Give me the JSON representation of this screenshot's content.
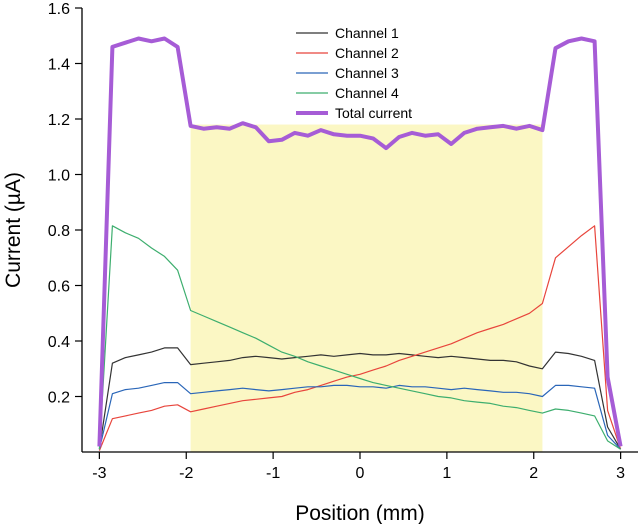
{
  "chart_data": {
    "type": "line",
    "title": "",
    "xlabel": "Position (mm)",
    "ylabel": "Current (µA)",
    "xlim": [
      -3.2,
      3.2
    ],
    "ylim": [
      0,
      1.6
    ],
    "xticks": [
      -3,
      -2,
      -1,
      0,
      1,
      2,
      3
    ],
    "xtick_labels": [
      "-3",
      "-2",
      "-1",
      "0",
      "1",
      "2",
      "3"
    ],
    "yticks": [
      0.2,
      0.4,
      0.6,
      0.8,
      1.0,
      1.2,
      1.4,
      1.6
    ],
    "ytick_labels": [
      "0.2",
      "0.4",
      "0.6",
      "0.8",
      "1.0",
      "1.2",
      "1.4",
      "1.6"
    ],
    "grid": false,
    "legend_position": "top-center",
    "highlight_region": {
      "x": [
        -1.95,
        2.1
      ],
      "y": [
        0,
        1.18
      ],
      "color": "#fbf7c4"
    },
    "series": [
      {
        "name": "Channel 1",
        "color": "#333333",
        "x": [
          -3.0,
          -2.85,
          -2.7,
          -2.55,
          -2.4,
          -2.25,
          -2.1,
          -1.95,
          -1.8,
          -1.65,
          -1.5,
          -1.35,
          -1.2,
          -1.05,
          -0.9,
          -0.75,
          -0.6,
          -0.45,
          -0.3,
          -0.15,
          0.0,
          0.15,
          0.3,
          0.45,
          0.6,
          0.75,
          0.9,
          1.05,
          1.2,
          1.35,
          1.5,
          1.65,
          1.8,
          1.95,
          2.1,
          2.25,
          2.4,
          2.55,
          2.7,
          2.85,
          3.0
        ],
        "y": [
          0.01,
          0.32,
          0.34,
          0.35,
          0.36,
          0.375,
          0.375,
          0.315,
          0.32,
          0.325,
          0.33,
          0.34,
          0.345,
          0.34,
          0.335,
          0.34,
          0.345,
          0.35,
          0.345,
          0.35,
          0.355,
          0.35,
          0.35,
          0.355,
          0.35,
          0.345,
          0.34,
          0.345,
          0.34,
          0.335,
          0.33,
          0.33,
          0.325,
          0.31,
          0.3,
          0.36,
          0.355,
          0.345,
          0.33,
          0.09,
          0.01
        ]
      },
      {
        "name": "Channel 2",
        "color": "#e8453c",
        "x": [
          -3.0,
          -2.85,
          -2.7,
          -2.55,
          -2.4,
          -2.25,
          -2.1,
          -1.95,
          -1.8,
          -1.65,
          -1.5,
          -1.35,
          -1.2,
          -1.05,
          -0.9,
          -0.75,
          -0.6,
          -0.45,
          -0.3,
          -0.15,
          0.0,
          0.15,
          0.3,
          0.45,
          0.6,
          0.75,
          0.9,
          1.05,
          1.2,
          1.35,
          1.5,
          1.65,
          1.8,
          1.95,
          2.1,
          2.25,
          2.4,
          2.55,
          2.7,
          2.85,
          3.0
        ],
        "y": [
          0.005,
          0.12,
          0.13,
          0.14,
          0.15,
          0.165,
          0.17,
          0.145,
          0.155,
          0.165,
          0.175,
          0.185,
          0.19,
          0.195,
          0.2,
          0.215,
          0.225,
          0.24,
          0.255,
          0.27,
          0.28,
          0.295,
          0.31,
          0.33,
          0.345,
          0.36,
          0.375,
          0.39,
          0.41,
          0.43,
          0.445,
          0.46,
          0.48,
          0.5,
          0.535,
          0.7,
          0.74,
          0.78,
          0.815,
          0.15,
          0.01
        ]
      },
      {
        "name": "Channel 3",
        "color": "#2a66b8",
        "x": [
          -3.0,
          -2.85,
          -2.7,
          -2.55,
          -2.4,
          -2.25,
          -2.1,
          -1.95,
          -1.8,
          -1.65,
          -1.5,
          -1.35,
          -1.2,
          -1.05,
          -0.9,
          -0.75,
          -0.6,
          -0.45,
          -0.3,
          -0.15,
          0.0,
          0.15,
          0.3,
          0.45,
          0.6,
          0.75,
          0.9,
          1.05,
          1.2,
          1.35,
          1.5,
          1.65,
          1.8,
          1.95,
          2.1,
          2.25,
          2.4,
          2.55,
          2.7,
          2.85,
          3.0
        ],
        "y": [
          0.01,
          0.21,
          0.225,
          0.23,
          0.24,
          0.25,
          0.25,
          0.21,
          0.215,
          0.22,
          0.225,
          0.23,
          0.225,
          0.22,
          0.225,
          0.23,
          0.235,
          0.235,
          0.24,
          0.24,
          0.235,
          0.235,
          0.23,
          0.24,
          0.235,
          0.235,
          0.23,
          0.225,
          0.23,
          0.225,
          0.22,
          0.215,
          0.215,
          0.21,
          0.2,
          0.24,
          0.24,
          0.235,
          0.23,
          0.06,
          0.01
        ]
      },
      {
        "name": "Channel 4",
        "color": "#3dae6e",
        "x": [
          -3.0,
          -2.85,
          -2.7,
          -2.55,
          -2.4,
          -2.25,
          -2.1,
          -1.95,
          -1.8,
          -1.65,
          -1.5,
          -1.35,
          -1.2,
          -1.05,
          -0.9,
          -0.75,
          -0.6,
          -0.45,
          -0.3,
          -0.15,
          0.0,
          0.15,
          0.3,
          0.45,
          0.6,
          0.75,
          0.9,
          1.05,
          1.2,
          1.35,
          1.5,
          1.65,
          1.8,
          1.95,
          2.1,
          2.25,
          2.4,
          2.55,
          2.7,
          2.85,
          3.0
        ],
        "y": [
          0.01,
          0.815,
          0.79,
          0.77,
          0.735,
          0.705,
          0.655,
          0.51,
          0.49,
          0.47,
          0.45,
          0.43,
          0.41,
          0.385,
          0.36,
          0.345,
          0.325,
          0.31,
          0.295,
          0.28,
          0.265,
          0.25,
          0.24,
          0.23,
          0.22,
          0.21,
          0.2,
          0.195,
          0.185,
          0.18,
          0.175,
          0.165,
          0.16,
          0.15,
          0.14,
          0.155,
          0.15,
          0.14,
          0.13,
          0.04,
          0.01
        ]
      },
      {
        "name": "Total current",
        "color": "#a65cd6",
        "x": [
          -3.0,
          -2.85,
          -2.7,
          -2.55,
          -2.4,
          -2.25,
          -2.1,
          -1.95,
          -1.8,
          -1.65,
          -1.5,
          -1.35,
          -1.2,
          -1.05,
          -0.9,
          -0.75,
          -0.6,
          -0.45,
          -0.3,
          -0.15,
          0.0,
          0.15,
          0.3,
          0.45,
          0.6,
          0.75,
          0.9,
          1.05,
          1.2,
          1.35,
          1.5,
          1.65,
          1.8,
          1.95,
          2.1,
          2.25,
          2.4,
          2.55,
          2.7,
          2.85,
          3.0
        ],
        "y": [
          0.02,
          1.46,
          1.475,
          1.49,
          1.48,
          1.49,
          1.46,
          1.175,
          1.165,
          1.17,
          1.165,
          1.185,
          1.17,
          1.12,
          1.125,
          1.15,
          1.14,
          1.16,
          1.145,
          1.14,
          1.14,
          1.13,
          1.095,
          1.135,
          1.15,
          1.14,
          1.145,
          1.11,
          1.15,
          1.165,
          1.17,
          1.175,
          1.165,
          1.175,
          1.16,
          1.455,
          1.48,
          1.49,
          1.48,
          0.27,
          0.02
        ]
      }
    ]
  }
}
